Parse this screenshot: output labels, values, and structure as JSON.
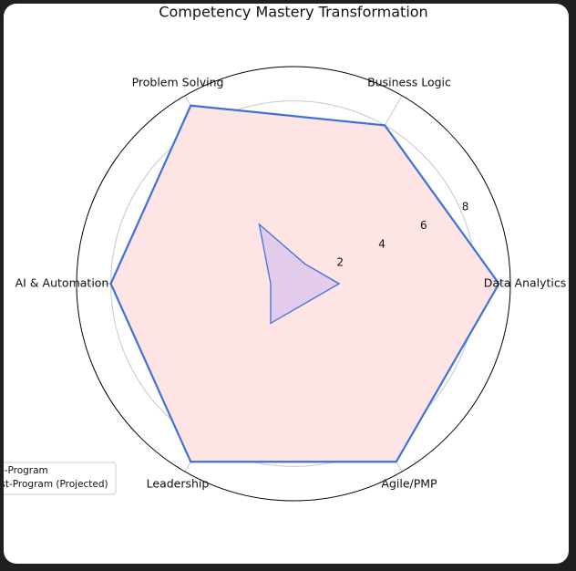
{
  "chart_data": {
    "type": "radar",
    "title": "Competency Mastery Transformation",
    "categories": [
      "Data Analytics",
      "Business Logic",
      "Problem Solving",
      "AI & Automation",
      "Leadership",
      "Agile/PMP"
    ],
    "series": [
      {
        "name": "Pre-Program",
        "color": "#3b73d9",
        "fill": "#dcc6ec",
        "values": [
          2,
          1,
          3,
          1,
          2,
          1
        ]
      },
      {
        "name": "Post-Program (Projected)",
        "color": "#3b73d9",
        "fill": "#ffe4e6",
        "values": [
          9,
          8,
          9,
          8,
          9,
          9
        ]
      }
    ],
    "ylim": [
      0,
      9.5
    ],
    "yticks": [
      2,
      4,
      6,
      8
    ],
    "grid": true,
    "legend": "lower left"
  }
}
